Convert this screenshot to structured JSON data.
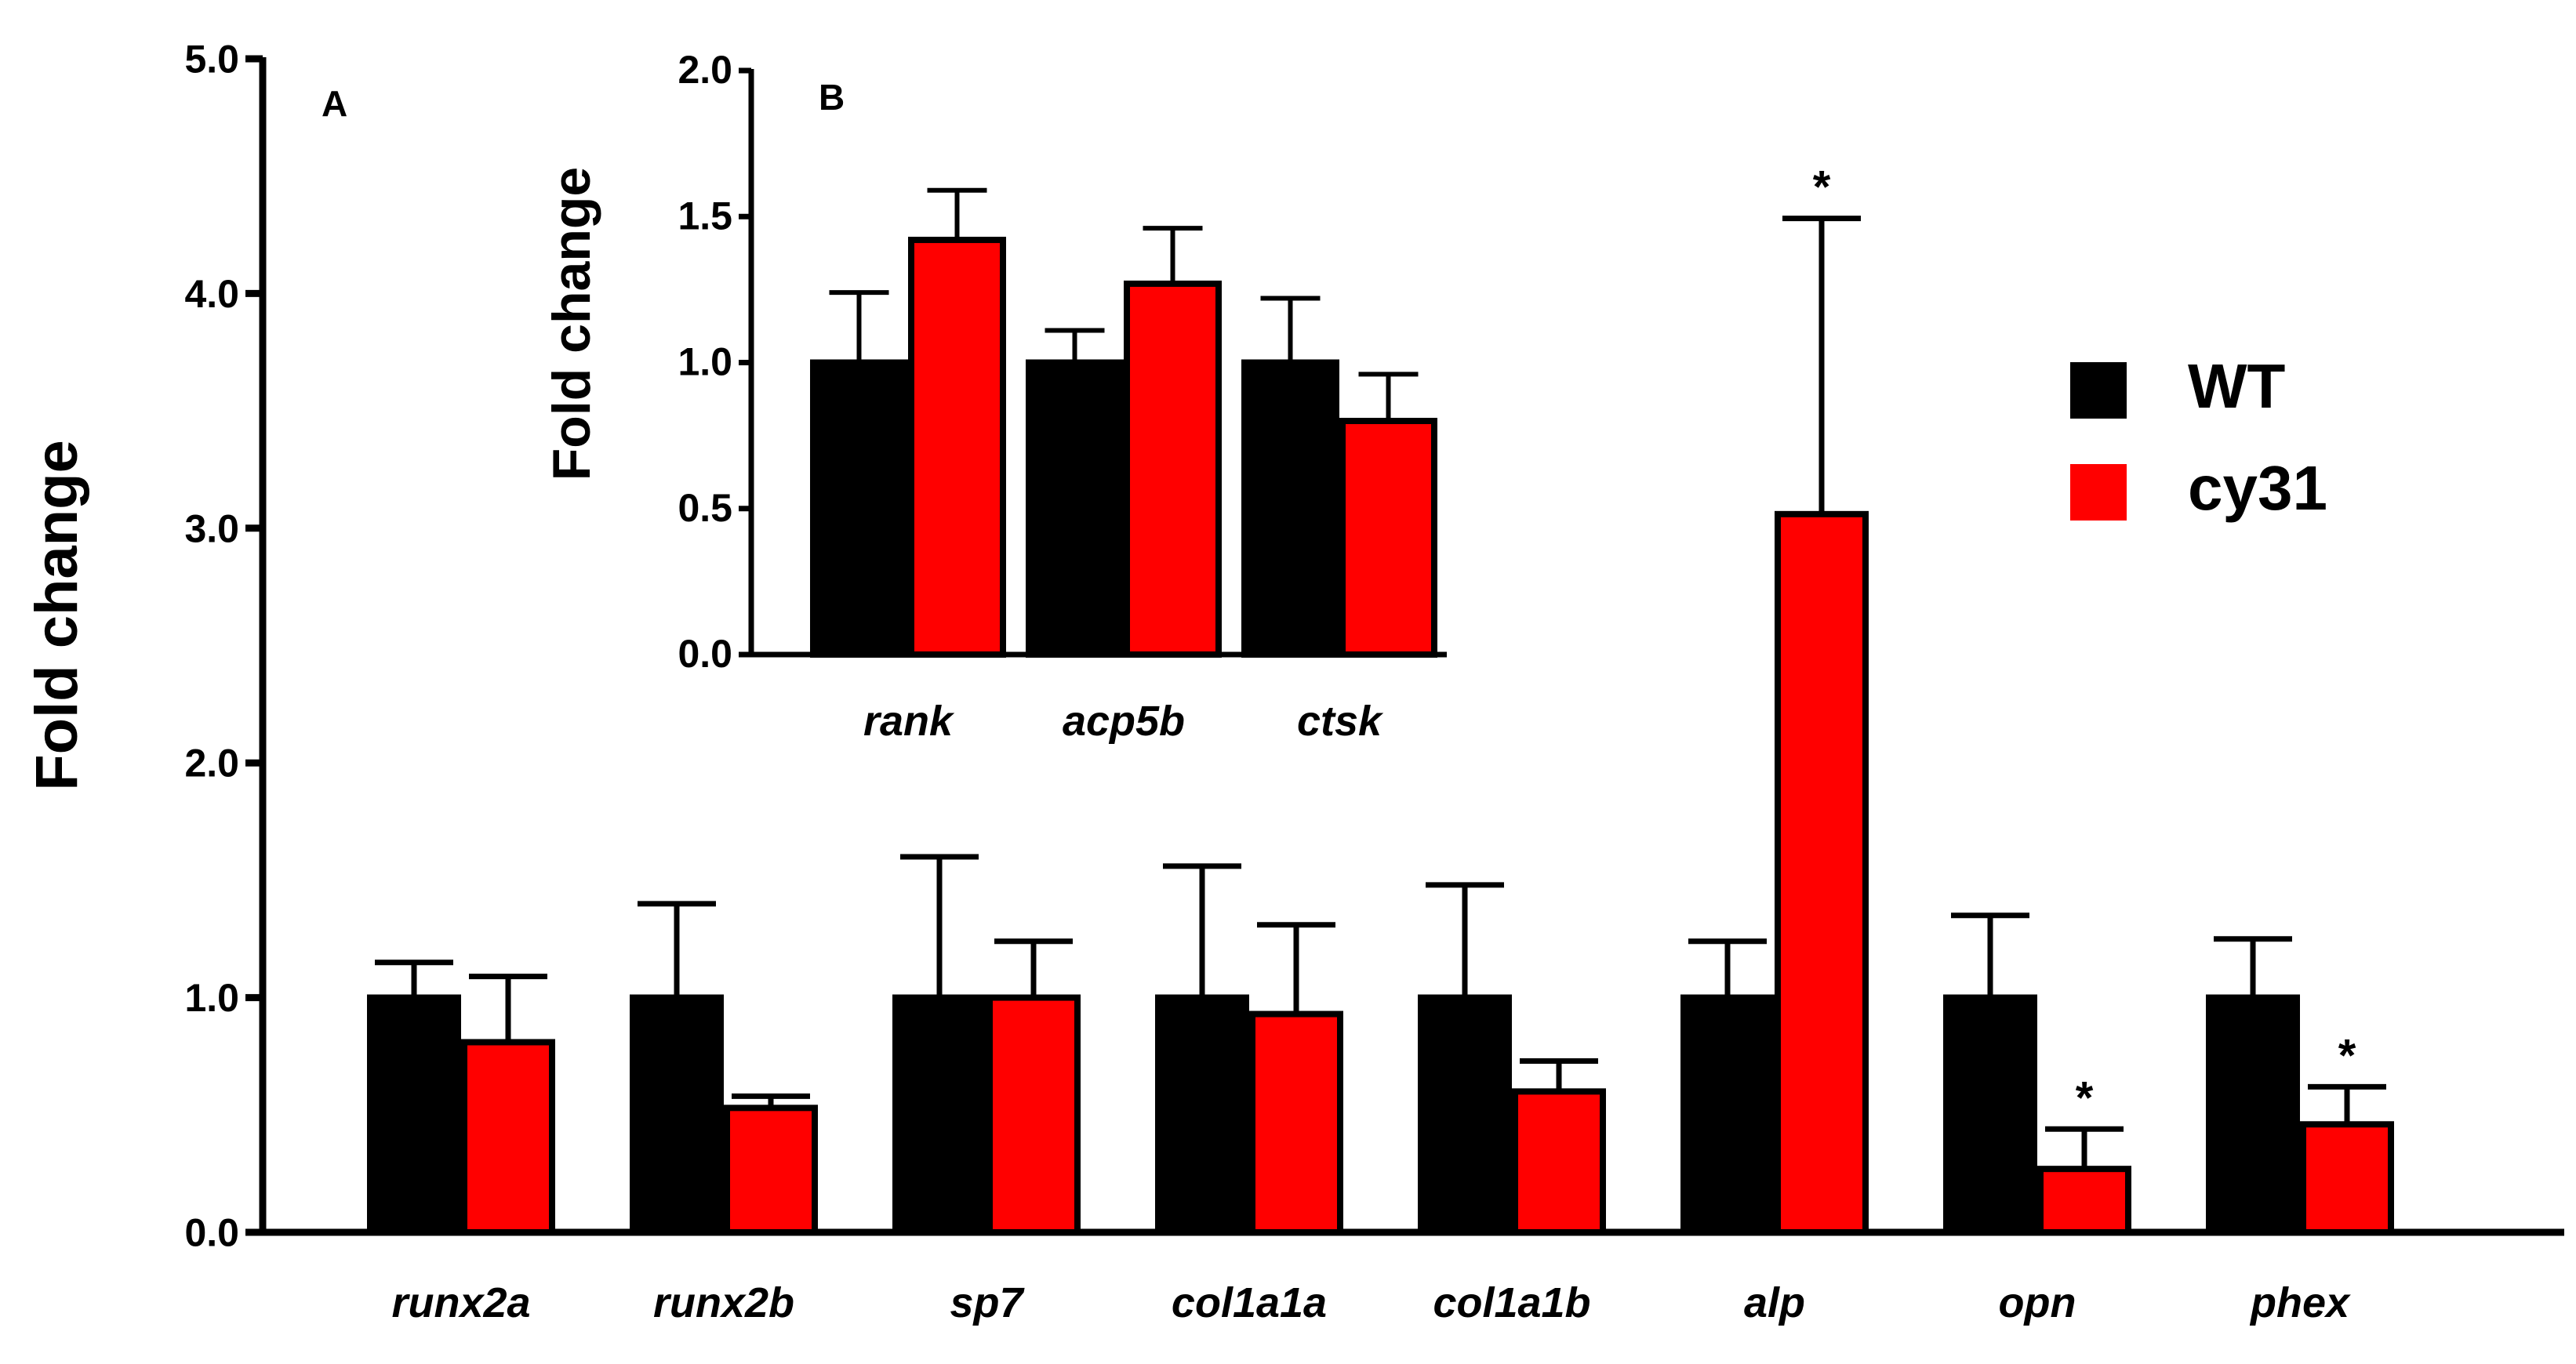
{
  "colors": {
    "wt": "#000000",
    "cy31": "#ff0000",
    "axis": "#000000"
  },
  "legend": [
    {
      "label": "WT",
      "color": "#000000"
    },
    {
      "label": "cy31",
      "color": "#ff0000"
    }
  ],
  "chart_data": [
    {
      "panel": "A",
      "type": "bar",
      "ylabel": "Fold change",
      "ylim": [
        0,
        5
      ],
      "yticks": [
        "0.0",
        "1.0",
        "2.0",
        "3.0",
        "4.0",
        "5.0"
      ],
      "categories": [
        "runx2a",
        "runx2b",
        "sp7",
        "col1a1a",
        "col1a1b",
        "alp",
        "opn",
        "phex"
      ],
      "series": [
        {
          "name": "WT",
          "values": [
            1.0,
            1.0,
            1.0,
            1.0,
            1.0,
            1.0,
            1.0,
            1.0
          ],
          "errors": [
            0.15,
            0.4,
            0.6,
            0.56,
            0.48,
            0.24,
            0.35,
            0.25
          ]
        },
        {
          "name": "cy31",
          "values": [
            0.81,
            0.53,
            1.0,
            0.93,
            0.6,
            3.06,
            0.27,
            0.46
          ],
          "errors": [
            0.28,
            0.05,
            0.24,
            0.38,
            0.13,
            1.26,
            0.17,
            0.16
          ]
        }
      ],
      "significance": [
        {
          "category": "alp",
          "label": "*"
        },
        {
          "category": "opn",
          "label": "*"
        },
        {
          "category": "phex",
          "label": "*"
        }
      ]
    },
    {
      "panel": "B",
      "type": "bar",
      "ylabel": "Fold change",
      "ylim": [
        0,
        2
      ],
      "yticks": [
        "0.0",
        "0.5",
        "1.0",
        "1.5",
        "2.0"
      ],
      "categories": [
        "rank",
        "acp5b",
        "ctsk"
      ],
      "series": [
        {
          "name": "WT",
          "values": [
            1.0,
            1.0,
            1.0
          ],
          "errors": [
            0.24,
            0.11,
            0.22
          ]
        },
        {
          "name": "cy31",
          "values": [
            1.42,
            1.27,
            0.8
          ],
          "errors": [
            0.17,
            0.19,
            0.16
          ]
        }
      ],
      "significance": []
    }
  ]
}
